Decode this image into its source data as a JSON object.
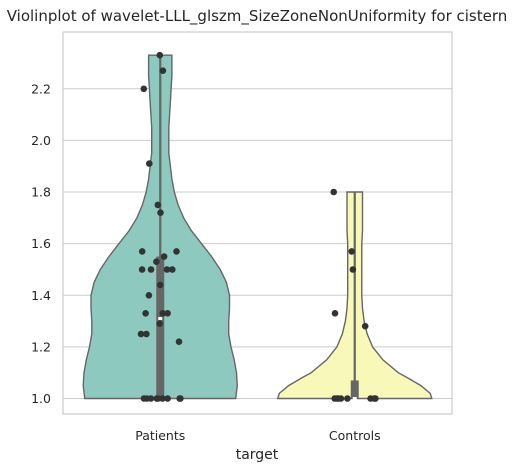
{
  "chart_data": {
    "type": "violin",
    "title": "Violinplot of wavelet-LLL_glszm_SizeZoneNonUniformity for cistern",
    "xlabel": "target",
    "ylabel": "",
    "categories": [
      "Patients",
      "Controls"
    ],
    "ylim": [
      0.94,
      2.42
    ],
    "yticks": [
      1.0,
      1.2,
      1.4,
      1.6,
      1.8,
      2.0,
      2.2
    ],
    "ytick_labels": [
      "1.0",
      "1.2",
      "1.4",
      "1.6",
      "1.8",
      "2.0",
      "2.2"
    ],
    "grid": true,
    "colors": {
      "Patients": "#8ec9bf",
      "Controls": "#f8f8b8"
    },
    "series": [
      {
        "category": "Patients",
        "points": [
          2.33,
          2.27,
          2.2,
          1.91,
          1.75,
          1.72,
          1.57,
          1.57,
          1.55,
          1.53,
          1.5,
          1.5,
          1.5,
          1.5,
          1.44,
          1.4,
          1.33,
          1.33,
          1.33,
          1.29,
          1.25,
          1.25,
          1.22,
          1.0,
          1.0,
          1.0,
          1.0,
          1.0,
          1.0,
          1.0,
          1.0,
          1.0
        ],
        "box": {
          "q1": 1.0,
          "median": 1.31,
          "q3": 1.55,
          "whisker_low": 1.0,
          "whisker_high": 2.33
        },
        "density": [
          [
            1.0,
            0.0
          ],
          [
            1.0,
            0.97
          ],
          [
            1.05,
            0.99
          ],
          [
            1.1,
            0.98
          ],
          [
            1.15,
            0.95
          ],
          [
            1.2,
            0.91
          ],
          [
            1.25,
            0.88
          ],
          [
            1.3,
            0.88
          ],
          [
            1.35,
            0.89
          ],
          [
            1.4,
            0.89
          ],
          [
            1.45,
            0.85
          ],
          [
            1.5,
            0.77
          ],
          [
            1.55,
            0.66
          ],
          [
            1.6,
            0.53
          ],
          [
            1.65,
            0.4
          ],
          [
            1.7,
            0.3
          ],
          [
            1.75,
            0.23
          ],
          [
            1.8,
            0.18
          ],
          [
            1.85,
            0.15
          ],
          [
            1.9,
            0.13
          ],
          [
            1.95,
            0.11
          ],
          [
            2.0,
            0.11
          ],
          [
            2.05,
            0.11
          ],
          [
            2.1,
            0.12
          ],
          [
            2.15,
            0.13
          ],
          [
            2.2,
            0.14
          ],
          [
            2.25,
            0.15
          ],
          [
            2.3,
            0.15
          ],
          [
            2.33,
            0.15
          ],
          [
            2.33,
            0.0
          ]
        ]
      },
      {
        "category": "Controls",
        "points": [
          1.8,
          1.57,
          1.5,
          1.33,
          1.28,
          1.0,
          1.0,
          1.0,
          1.0,
          1.0,
          1.0,
          1.0,
          1.0
        ],
        "box": {
          "q1": 1.0,
          "median": 1.0,
          "q3": 1.07,
          "whisker_low": 1.0,
          "whisker_high": 1.8
        },
        "density": [
          [
            1.0,
            0.0
          ],
          [
            1.0,
            0.99
          ],
          [
            1.02,
            0.97
          ],
          [
            1.05,
            0.85
          ],
          [
            1.08,
            0.68
          ],
          [
            1.1,
            0.56
          ],
          [
            1.15,
            0.36
          ],
          [
            1.2,
            0.23
          ],
          [
            1.25,
            0.16
          ],
          [
            1.3,
            0.12
          ],
          [
            1.35,
            0.1
          ],
          [
            1.4,
            0.09
          ],
          [
            1.45,
            0.09
          ],
          [
            1.5,
            0.09
          ],
          [
            1.55,
            0.09
          ],
          [
            1.6,
            0.09
          ],
          [
            1.65,
            0.1
          ],
          [
            1.7,
            0.1
          ],
          [
            1.75,
            0.1
          ],
          [
            1.8,
            0.1
          ],
          [
            1.8,
            0.0
          ]
        ]
      }
    ]
  }
}
